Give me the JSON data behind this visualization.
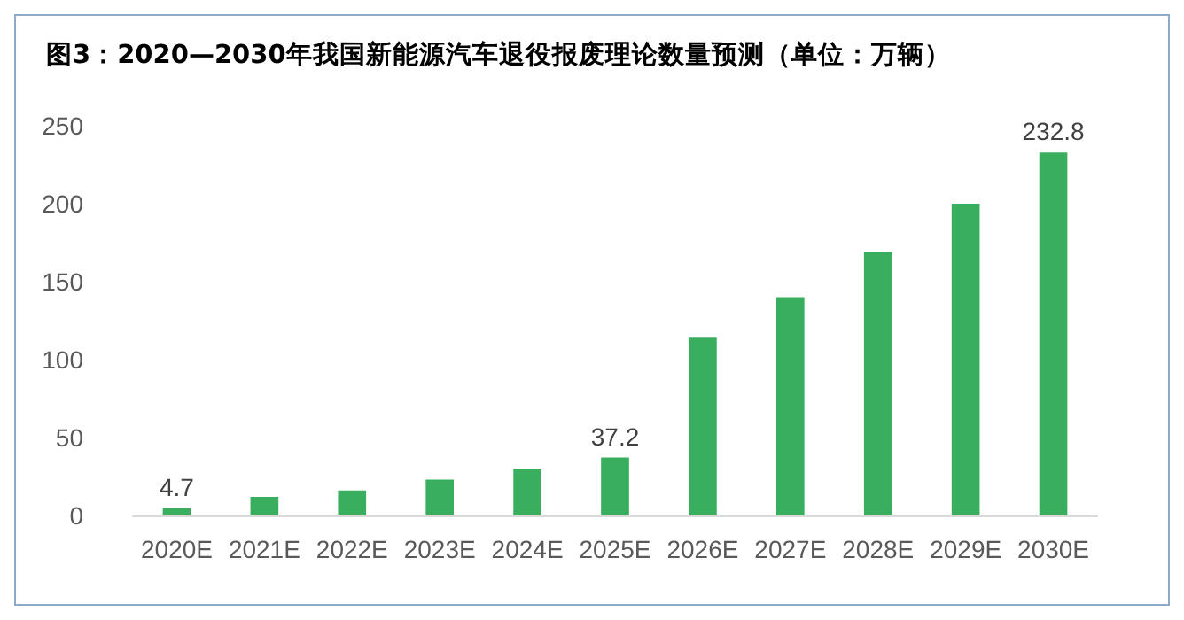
{
  "chart_data": {
    "type": "bar",
    "title": "图3：2020—2030年我国新能源汽车退役报废理论数量预测（单位：万辆）",
    "categories": [
      "2020E",
      "2021E",
      "2022E",
      "2023E",
      "2024E",
      "2025E",
      "2026E",
      "2027E",
      "2028E",
      "2029E",
      "2030E"
    ],
    "values": [
      4.7,
      12,
      16,
      23,
      30,
      37.2,
      114,
      140,
      169,
      200,
      232.8
    ],
    "value_labels": [
      "4.7",
      null,
      null,
      null,
      null,
      "37.2",
      null,
      null,
      null,
      null,
      "232.8"
    ],
    "color": "#3aae5f",
    "ylim": [
      0,
      250
    ],
    "yticks": [
      0,
      50,
      100,
      150,
      200,
      250
    ],
    "grid": false
  }
}
